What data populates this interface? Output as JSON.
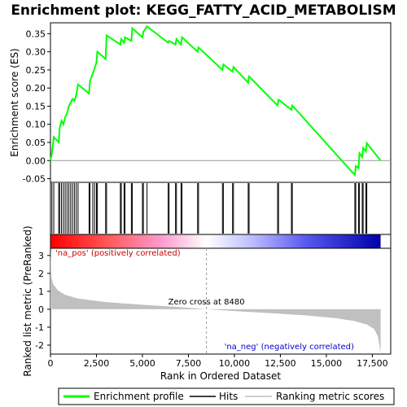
{
  "chart_data": {
    "type": "line",
    "title": "Enrichment plot: KEGG_FATTY_ACID_METABOLISM",
    "xlabel": "Rank in Ordered Dataset",
    "ylabel_top": "Enrichment score (ES)",
    "ylabel_bottom": "Ranked list metric (PreRanked)",
    "xlim": [
      0,
      18500
    ],
    "ylim_top": [
      -0.06,
      0.38
    ],
    "ylim_bottom": [
      -2.5,
      3.4
    ],
    "x_ticks": [
      0,
      2500,
      5000,
      7500,
      10000,
      12500,
      15000,
      17500
    ],
    "x_tick_labels": [
      "0",
      "2,500",
      "5,000",
      "7,500",
      "10,000",
      "12,500",
      "15,000",
      "17,500"
    ],
    "y_ticks_top": [
      -0.05,
      0.0,
      0.05,
      0.1,
      0.15,
      0.2,
      0.25,
      0.3,
      0.35
    ],
    "y_tick_labels_top": [
      "-0.05",
      "0.00",
      "0.05",
      "0.10",
      "0.15",
      "0.20",
      "0.25",
      "0.30",
      "0.35"
    ],
    "y_ticks_bottom": [
      -2,
      -1,
      0,
      1,
      2,
      3
    ],
    "y_tick_labels_bottom": [
      "-2",
      "-1",
      "0",
      "1",
      "2",
      "3"
    ],
    "enrichment_profile": {
      "name": "Enrichment profile",
      "color": "#00ff00",
      "points": [
        [
          0,
          0.0
        ],
        [
          80,
          0.02
        ],
        [
          180,
          0.065
        ],
        [
          450,
          0.05
        ],
        [
          500,
          0.09
        ],
        [
          600,
          0.11
        ],
        [
          700,
          0.1
        ],
        [
          800,
          0.12
        ],
        [
          900,
          0.13
        ],
        [
          1000,
          0.15
        ],
        [
          1100,
          0.16
        ],
        [
          1200,
          0.17
        ],
        [
          1300,
          0.165
        ],
        [
          1400,
          0.18
        ],
        [
          1500,
          0.21
        ],
        [
          2100,
          0.185
        ],
        [
          2150,
          0.22
        ],
        [
          2300,
          0.24
        ],
        [
          2400,
          0.255
        ],
        [
          2500,
          0.27
        ],
        [
          2550,
          0.3
        ],
        [
          3000,
          0.28
        ],
        [
          3050,
          0.345
        ],
        [
          3800,
          0.32
        ],
        [
          3850,
          0.335
        ],
        [
          4000,
          0.325
        ],
        [
          4050,
          0.34
        ],
        [
          4400,
          0.33
        ],
        [
          4450,
          0.365
        ],
        [
          5000,
          0.34
        ],
        [
          5050,
          0.355
        ],
        [
          5250,
          0.37
        ],
        [
          6400,
          0.325
        ],
        [
          6450,
          0.33
        ],
        [
          6800,
          0.32
        ],
        [
          6850,
          0.335
        ],
        [
          7100,
          0.32
        ],
        [
          7150,
          0.34
        ],
        [
          8000,
          0.3
        ],
        [
          8050,
          0.312
        ],
        [
          9350,
          0.25
        ],
        [
          9400,
          0.265
        ],
        [
          9900,
          0.245
        ],
        [
          9950,
          0.258
        ],
        [
          10750,
          0.215
        ],
        [
          10800,
          0.232
        ],
        [
          12350,
          0.152
        ],
        [
          12400,
          0.168
        ],
        [
          13100,
          0.14
        ],
        [
          13150,
          0.152
        ],
        [
          16550,
          -0.04
        ],
        [
          16600,
          -0.015
        ],
        [
          16750,
          -0.02
        ],
        [
          16800,
          0.02
        ],
        [
          16950,
          0.01
        ],
        [
          17000,
          0.035
        ],
        [
          17150,
          0.025
        ],
        [
          17200,
          0.048
        ],
        [
          17950,
          0.0
        ]
      ]
    },
    "hits": {
      "name": "Hits",
      "color": "#000000",
      "positions": [
        80,
        180,
        450,
        500,
        600,
        700,
        800,
        900,
        1000,
        1100,
        1200,
        1300,
        1400,
        1500,
        2100,
        2150,
        2300,
        2400,
        2500,
        2550,
        3000,
        3050,
        3800,
        3850,
        4000,
        4050,
        4400,
        4450,
        5000,
        5050,
        5250,
        6400,
        6450,
        6800,
        6850,
        7100,
        7150,
        8000,
        8050,
        9350,
        9400,
        9900,
        9950,
        10750,
        10800,
        12350,
        12400,
        13100,
        13150,
        16550,
        16600,
        16750,
        16800,
        16950,
        17000,
        17150,
        17200
      ]
    },
    "ranking_metric": {
      "name": "Ranking metric scores",
      "color": "#c0c0c0",
      "points": [
        [
          0,
          3.3
        ],
        [
          50,
          1.8
        ],
        [
          150,
          1.4
        ],
        [
          400,
          1.05
        ],
        [
          800,
          0.8
        ],
        [
          1500,
          0.6
        ],
        [
          3000,
          0.4
        ],
        [
          5000,
          0.25
        ],
        [
          7000,
          0.12
        ],
        [
          8480,
          0.0
        ],
        [
          10000,
          -0.1
        ],
        [
          12000,
          -0.22
        ],
        [
          14000,
          -0.35
        ],
        [
          15500,
          -0.5
        ],
        [
          16500,
          -0.65
        ],
        [
          17200,
          -0.85
        ],
        [
          17600,
          -1.1
        ],
        [
          17800,
          -1.5
        ],
        [
          17900,
          -2.1
        ],
        [
          17950,
          -2.4
        ]
      ]
    },
    "color_bar_stops": [
      {
        "rank": 0,
        "color": "#ff0000"
      },
      {
        "rank": 3000,
        "color": "#ff5555"
      },
      {
        "rank": 6000,
        "color": "#ff99cc"
      },
      {
        "rank": 8480,
        "color": "#ffffff"
      },
      {
        "rank": 11000,
        "color": "#bbbbff"
      },
      {
        "rank": 14000,
        "color": "#5555ee"
      },
      {
        "rank": 17950,
        "color": "#0000aa"
      }
    ],
    "zero_cross": 8480,
    "zero_cross_label": "Zero cross at 8480",
    "pos_label": "'na_pos' (positively correlated)",
    "neg_label": "'na_neg' (negatively correlated)",
    "legend": {
      "placement": "bottom",
      "items": [
        {
          "label": "Enrichment profile",
          "kind": "enrichment"
        },
        {
          "label": "Hits",
          "kind": "hits"
        },
        {
          "label": "Ranking metric scores",
          "kind": "metric"
        }
      ]
    }
  }
}
